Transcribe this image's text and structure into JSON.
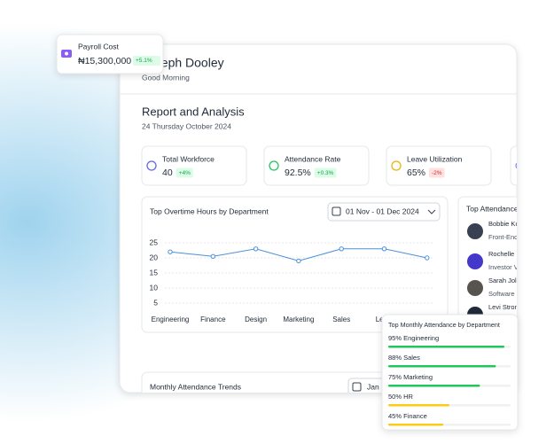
{
  "popup_payroll": {
    "title": "Payroll Cost",
    "value": "₦15,300,000",
    "change": "+5.1%"
  },
  "header": {
    "name": "Joseph Dooley",
    "greeting": "Good Morning"
  },
  "report": {
    "title": "Report and Analysis",
    "date": "24 Thursday October 2024"
  },
  "kpis": [
    {
      "label": "Total Workforce",
      "value": "40",
      "change": "+4%",
      "trend": "up"
    },
    {
      "label": "Attendance Rate",
      "value": "92.5%",
      "change": "+0.3%",
      "trend": "up"
    },
    {
      "label": "Leave Utilization",
      "value": "65%",
      "change": "-2%",
      "trend": "down"
    }
  ],
  "overtime_chart": {
    "type": "line",
    "title": "Top Overtime Hours by Department",
    "date_range": "01 Nov - 01 Dec 2024",
    "categories": [
      "Engineering",
      "Finance",
      "Design",
      "Marketing",
      "Sales",
      "Legal",
      null
    ],
    "values": [
      22,
      20.5,
      23,
      19,
      23,
      23,
      20
    ],
    "ylim": [
      0,
      25
    ],
    "yticks": [
      5,
      10,
      15,
      20,
      25
    ],
    "color": "#4a90d9",
    "grid": true
  },
  "top_attendance": {
    "title": "Top Attendance",
    "people": [
      {
        "name": "Bobbie Ko",
        "role": "Front-End"
      },
      {
        "name": "Rochelle",
        "role": "Investor V"
      },
      {
        "name": "Sarah Jol",
        "role": "Software"
      },
      {
        "name": "Levi Strom"
      }
    ]
  },
  "monthly_trends": {
    "title": "Monthly Attendance Trends",
    "date_range": "Jan"
  },
  "department_popup": {
    "title": "Top Monthly Attendance by Department",
    "rows": [
      {
        "label": "95% Engineering",
        "value": 95,
        "color": "#22c55e"
      },
      {
        "label": "88% Sales",
        "value": 88,
        "color": "#22c55e"
      },
      {
        "label": "75% Marketing",
        "value": 75,
        "color": "#22c55e"
      },
      {
        "label": "50% HR",
        "value": 50,
        "color": "#facc15"
      },
      {
        "label": "45% Finance",
        "value": 45,
        "color": "#facc15"
      }
    ]
  }
}
